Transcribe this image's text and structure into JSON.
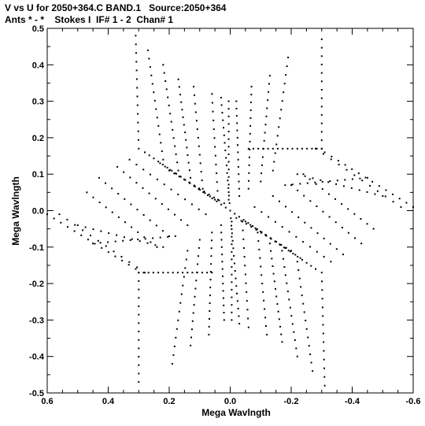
{
  "header": {
    "line1": "V vs U for 2050+364.C BAND.1   Source:2050+364",
    "line2": "Ants * - *    Stokes I  IF# 1 - 2  Chan# 1"
  },
  "chart_data": {
    "type": "scatter",
    "xlabel": "Mega Wavlngth",
    "ylabel": "Mega Wavlngth",
    "xlim": [
      0.6,
      -0.6
    ],
    "ylim": [
      -0.5,
      0.5
    ],
    "x_ticks": [
      0.6,
      0.4,
      0.2,
      0.0,
      -0.2,
      -0.4,
      -0.6
    ],
    "y_ticks": [
      -0.5,
      -0.4,
      -0.3,
      -0.2,
      -0.1,
      0.0,
      0.1,
      0.2,
      0.3,
      0.4,
      0.5
    ],
    "x_tick_labels": [
      "0.6",
      "0.4",
      "0.2",
      "0.0",
      "-0.2",
      "-0.4",
      "-0.6"
    ],
    "y_tick_labels": [
      "-0.5",
      "-0.4",
      "-0.3",
      "-0.2",
      "-0.1",
      "0.0",
      "0.1",
      "0.2",
      "0.3",
      "0.4",
      "0.5"
    ],
    "grid": false,
    "marker_color": "#000000",
    "symmetry": "point (u,v) and (-u,-v) both plotted",
    "tracks": [
      {
        "u0": 0.31,
        "v0": 0.48,
        "u1": 0.3,
        "v1": 0.17,
        "n": 14
      },
      {
        "u0": 0.27,
        "v0": 0.44,
        "u1": 0.22,
        "v1": 0.14,
        "n": 14
      },
      {
        "u0": 0.22,
        "v0": 0.4,
        "u1": 0.17,
        "v1": 0.11,
        "n": 14
      },
      {
        "u0": 0.17,
        "v0": 0.36,
        "u1": 0.13,
        "v1": 0.09,
        "n": 14
      },
      {
        "u0": 0.12,
        "v0": 0.34,
        "u1": 0.09,
        "v1": 0.06,
        "n": 13
      },
      {
        "u0": 0.06,
        "v0": 0.32,
        "u1": 0.04,
        "v1": 0.03,
        "n": 13
      },
      {
        "u0": 0.03,
        "v0": 0.31,
        "u1": 0.0,
        "v1": 0.0,
        "n": 16
      },
      {
        "u0": 0.005,
        "v0": 0.3,
        "u1": 0.005,
        "v1": 0.03,
        "n": 14
      },
      {
        "u0": -0.02,
        "v0": 0.3,
        "u1": -0.03,
        "v1": 0.04,
        "n": 14
      },
      {
        "u0": -0.07,
        "v0": 0.34,
        "u1": -0.06,
        "v1": 0.06,
        "n": 14
      },
      {
        "u0": -0.13,
        "v0": 0.37,
        "u1": -0.1,
        "v1": 0.08,
        "n": 14
      },
      {
        "u0": -0.19,
        "v0": 0.42,
        "u1": -0.14,
        "v1": 0.11,
        "n": 14
      },
      {
        "u0": -0.3,
        "v0": 0.47,
        "u1": -0.3,
        "v1": 0.17,
        "n": 14
      },
      {
        "u0": 0.56,
        "v0": -0.01,
        "u1": 0.28,
        "v1": -0.17,
        "n": 12
      },
      {
        "u0": 0.47,
        "v0": 0.05,
        "u1": 0.24,
        "v1": -0.1,
        "n": 12
      },
      {
        "u0": 0.43,
        "v0": 0.09,
        "u1": 0.2,
        "v1": -0.07,
        "n": 12
      },
      {
        "u0": 0.37,
        "v0": 0.12,
        "u1": 0.14,
        "v1": -0.04,
        "n": 12
      },
      {
        "u0": 0.33,
        "v0": 0.14,
        "u1": 0.08,
        "v1": -0.01,
        "n": 12
      },
      {
        "u0": 0.28,
        "v0": 0.16,
        "u1": 0.0,
        "v1": 0.0,
        "n": 20
      },
      {
        "u0": 0.23,
        "v0": 0.13,
        "u1": 0.05,
        "v1": 0.03,
        "n": 12
      },
      {
        "u0": 0.2,
        "v0": 0.11,
        "u1": 0.02,
        "v1": 0.02,
        "n": 12
      },
      {
        "u0": -0.06,
        "v0": 0.17,
        "u1": -0.3,
        "v1": 0.17,
        "n": 16
      },
      {
        "u0": -0.31,
        "v0": 0.16,
        "u1": -0.6,
        "v1": 0.01,
        "n": 14
      },
      {
        "u0": -0.22,
        "v0": 0.1,
        "u1": -0.5,
        "v1": 0.04,
        "n": 12
      },
      {
        "u0": -0.18,
        "v0": 0.07,
        "u1": -0.45,
        "v1": 0.09,
        "n": 12
      }
    ]
  }
}
